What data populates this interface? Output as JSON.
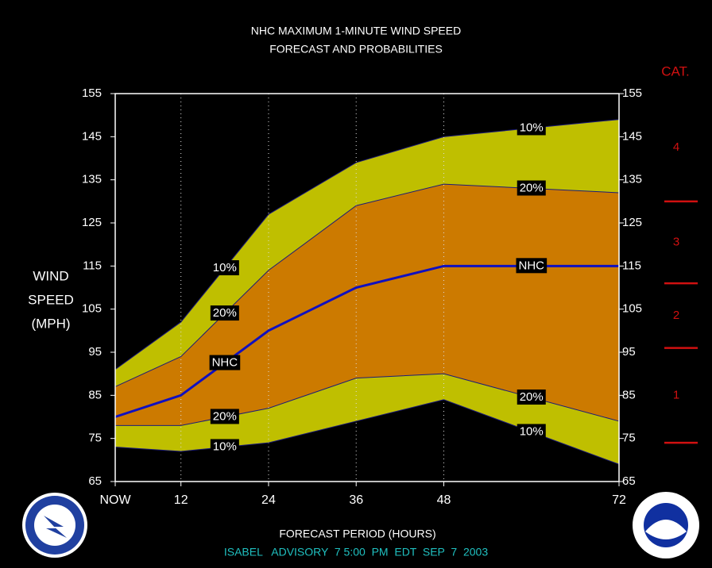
{
  "chart_data": {
    "type": "band-line",
    "title": "NHC MAXIMUM 1-MINUTE WIND SPEED",
    "subtitle": "FORECAST AND PROBABILITIES",
    "y_label": [
      "WIND",
      "SPEED",
      "(MPH)"
    ],
    "x_label": "FORECAST PERIOD (HOURS)",
    "footer": "ISABEL   ADVISORY  7 5:00  PM  EDT  SEP  7  2003",
    "x": [
      3,
      12,
      24,
      36,
      48,
      72
    ],
    "xlim": [
      3,
      72
    ],
    "xticks": [
      {
        "value": 3,
        "label": "NOW"
      },
      12,
      24,
      36,
      48,
      72
    ],
    "ylim": [
      65,
      155
    ],
    "yticks": [
      65,
      75,
      85,
      95,
      105,
      115,
      125,
      135,
      145,
      155
    ],
    "grid": true,
    "series": [
      {
        "name": "10%",
        "color": "#1c1c7a",
        "values": [
          91,
          102,
          127,
          139,
          145,
          149
        ]
      },
      {
        "name": "20%",
        "color": "#1c1c7a",
        "values": [
          87,
          94,
          114,
          129,
          134,
          132
        ]
      },
      {
        "name": "NHC",
        "color": "#1010c0",
        "values": [
          80,
          85,
          100,
          110,
          115,
          115
        ]
      },
      {
        "name": "20%",
        "color": "#1c1c7a",
        "values": [
          78,
          78,
          82,
          89,
          90,
          79
        ]
      },
      {
        "name": "10%",
        "color": "#1c1c7a",
        "values": [
          73,
          72,
          74,
          79,
          84,
          69
        ]
      }
    ],
    "band_colors": [
      "#bfbf00",
      "#cc7a00",
      "#cc7a00",
      "#bfbf00"
    ],
    "category_title": "CAT.",
    "category_color": "#d01010",
    "category_bounds": [
      74,
      96,
      111,
      130
    ],
    "category_labels": [
      "1",
      "2",
      "3",
      "4"
    ]
  }
}
